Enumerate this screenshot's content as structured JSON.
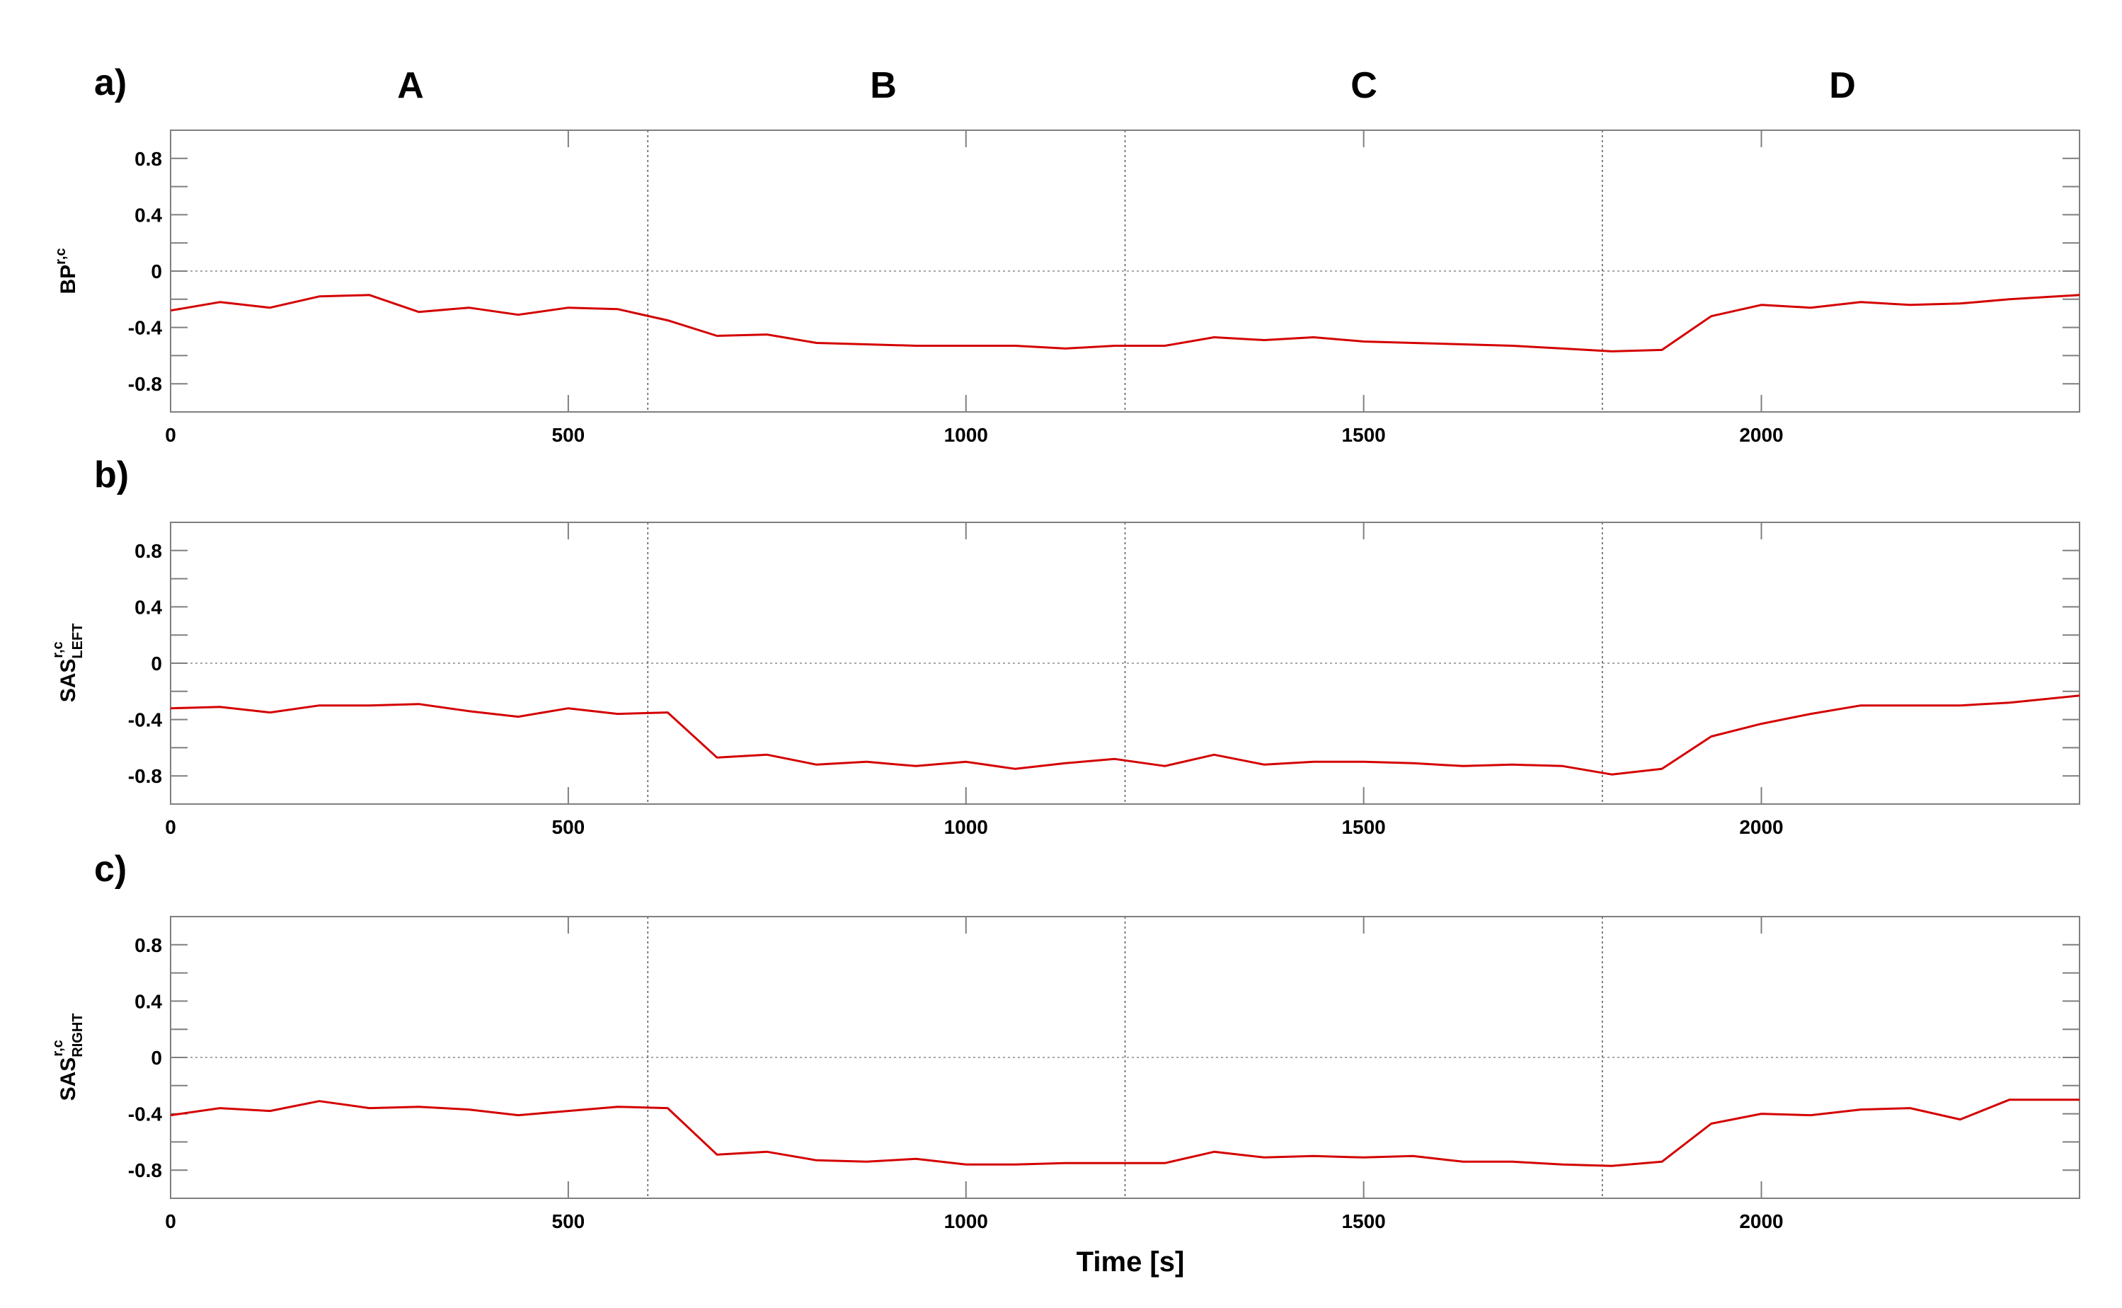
{
  "colors": {
    "series": "#d40000",
    "axes": "#7f7f7f",
    "divider": "#555555",
    "zeroline": "#8c8c8c"
  },
  "phase_labels": [
    "A",
    "B",
    "C",
    "D"
  ],
  "xlabel": "Time [s]",
  "chart_data": [
    {
      "type": "line",
      "panel_label": "a)",
      "ylabel": {
        "main": "BP",
        "sup": "r,c",
        "sub": ""
      },
      "xlim": [
        0,
        2400
      ],
      "ylim": [
        -1,
        1
      ],
      "xticks": [
        0,
        500,
        1000,
        1500,
        2000
      ],
      "yticks": [
        "0.8",
        "0.4",
        "0",
        "-0.4",
        "-0.8"
      ],
      "dividers": [
        600,
        1200,
        1800
      ],
      "zero_line": true,
      "x": [
        0,
        62,
        125,
        187,
        250,
        312,
        375,
        437,
        500,
        562,
        625,
        687,
        750,
        812,
        875,
        937,
        1000,
        1062,
        1125,
        1187,
        1250,
        1312,
        1375,
        1437,
        1500,
        1562,
        1625,
        1687,
        1750,
        1812,
        1875,
        1937,
        2000,
        2062,
        2125,
        2187,
        2250,
        2312,
        2400
      ],
      "y": [
        -0.28,
        -0.22,
        -0.26,
        -0.18,
        -0.17,
        -0.29,
        -0.26,
        -0.31,
        -0.26,
        -0.27,
        -0.35,
        -0.46,
        -0.45,
        -0.51,
        -0.52,
        -0.53,
        -0.53,
        -0.53,
        -0.55,
        -0.53,
        -0.53,
        -0.47,
        -0.49,
        -0.47,
        -0.5,
        -0.51,
        -0.52,
        -0.53,
        -0.55,
        -0.57,
        -0.56,
        -0.32,
        -0.24,
        -0.26,
        -0.22,
        -0.24,
        -0.23,
        -0.2,
        -0.17
      ]
    },
    {
      "type": "line",
      "panel_label": "b)",
      "ylabel": {
        "main": "SAS",
        "sup": "r,c",
        "sub": "LEFT"
      },
      "xlim": [
        0,
        2400
      ],
      "ylim": [
        -1,
        1
      ],
      "xticks": [
        0,
        500,
        1000,
        1500,
        2000
      ],
      "yticks": [
        "0.8",
        "0.4",
        "0",
        "-0.4",
        "-0.8"
      ],
      "dividers": [
        600,
        1200,
        1800
      ],
      "zero_line": true,
      "x": [
        0,
        62,
        125,
        187,
        250,
        312,
        375,
        437,
        500,
        562,
        625,
        687,
        750,
        812,
        875,
        937,
        1000,
        1062,
        1125,
        1187,
        1250,
        1312,
        1375,
        1437,
        1500,
        1562,
        1625,
        1687,
        1750,
        1812,
        1875,
        1937,
        2000,
        2062,
        2125,
        2187,
        2250,
        2312,
        2400
      ],
      "y": [
        -0.32,
        -0.31,
        -0.35,
        -0.3,
        -0.3,
        -0.29,
        -0.34,
        -0.38,
        -0.32,
        -0.36,
        -0.35,
        -0.67,
        -0.65,
        -0.72,
        -0.7,
        -0.73,
        -0.7,
        -0.75,
        -0.71,
        -0.68,
        -0.73,
        -0.65,
        -0.72,
        -0.7,
        -0.7,
        -0.71,
        -0.73,
        -0.72,
        -0.73,
        -0.79,
        -0.75,
        -0.52,
        -0.43,
        -0.36,
        -0.3,
        -0.3,
        -0.3,
        -0.28,
        -0.23
      ]
    },
    {
      "type": "line",
      "panel_label": "c)",
      "ylabel": {
        "main": "SAS",
        "sup": "r,c",
        "sub": "RIGHT"
      },
      "xlim": [
        0,
        2400
      ],
      "ylim": [
        -1,
        1
      ],
      "xticks": [
        0,
        500,
        1000,
        1500,
        2000
      ],
      "yticks": [
        "0.8",
        "0.4",
        "0",
        "-0.4",
        "-0.8"
      ],
      "dividers": [
        600,
        1200,
        1800
      ],
      "zero_line": true,
      "x": [
        0,
        62,
        125,
        187,
        250,
        312,
        375,
        437,
        500,
        562,
        625,
        687,
        750,
        812,
        875,
        937,
        1000,
        1062,
        1125,
        1187,
        1250,
        1312,
        1375,
        1437,
        1500,
        1562,
        1625,
        1687,
        1750,
        1812,
        1875,
        1937,
        2000,
        2062,
        2125,
        2187,
        2250,
        2312,
        2400
      ],
      "y": [
        -0.41,
        -0.36,
        -0.38,
        -0.31,
        -0.36,
        -0.35,
        -0.37,
        -0.41,
        -0.38,
        -0.35,
        -0.36,
        -0.69,
        -0.67,
        -0.73,
        -0.74,
        -0.72,
        -0.76,
        -0.76,
        -0.75,
        -0.75,
        -0.75,
        -0.67,
        -0.71,
        -0.7,
        -0.71,
        -0.7,
        -0.74,
        -0.74,
        -0.76,
        -0.77,
        -0.74,
        -0.47,
        -0.4,
        -0.41,
        -0.37,
        -0.36,
        -0.44,
        -0.3,
        -0.3
      ]
    }
  ]
}
